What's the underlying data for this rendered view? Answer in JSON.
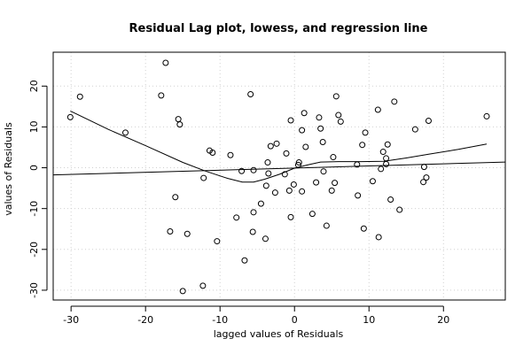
{
  "chart_data": {
    "type": "scatter",
    "title": "Residual Lag plot, lowess, and regression line",
    "xlabel": "lagged values of Residuals",
    "ylabel": "values of Residuals",
    "xlim": [
      -32.4,
      28.3
    ],
    "ylim": [
      -32.4,
      28.3
    ],
    "xticks": [
      -30,
      -20,
      -10,
      0,
      10,
      20
    ],
    "yticks": [
      -30,
      -20,
      -10,
      0,
      10,
      20
    ],
    "grid": true,
    "legend": "none",
    "colors": {
      "points": "#000000",
      "lines": "#000000",
      "grid": "#d0d0d0",
      "background": "#ffffff"
    },
    "points": [
      {
        "x": -30.1,
        "y": 12.4
      },
      {
        "x": -28.8,
        "y": 17.4
      },
      {
        "x": -22.7,
        "y": 8.6
      },
      {
        "x": -17.9,
        "y": 17.7
      },
      {
        "x": -17.3,
        "y": 25.7
      },
      {
        "x": -16.7,
        "y": -15.6
      },
      {
        "x": -16.0,
        "y": -7.2
      },
      {
        "x": -15.6,
        "y": 11.9
      },
      {
        "x": -15.4,
        "y": 10.6
      },
      {
        "x": -15.0,
        "y": -30.2
      },
      {
        "x": -14.4,
        "y": -16.2
      },
      {
        "x": -12.3,
        "y": -28.9
      },
      {
        "x": -12.2,
        "y": -2.5
      },
      {
        "x": -11.4,
        "y": 4.2
      },
      {
        "x": -11.0,
        "y": 3.7
      },
      {
        "x": -10.4,
        "y": -18.0
      },
      {
        "x": -8.6,
        "y": 3.1
      },
      {
        "x": -7.8,
        "y": -12.2
      },
      {
        "x": -7.1,
        "y": -0.8
      },
      {
        "x": -6.7,
        "y": -22.7
      },
      {
        "x": -5.9,
        "y": 18.0
      },
      {
        "x": -5.6,
        "y": -15.7
      },
      {
        "x": -5.5,
        "y": -10.9
      },
      {
        "x": -5.5,
        "y": -0.6
      },
      {
        "x": -4.5,
        "y": -8.8
      },
      {
        "x": -3.9,
        "y": -17.4
      },
      {
        "x": -3.8,
        "y": -4.4
      },
      {
        "x": -3.6,
        "y": 1.3
      },
      {
        "x": -3.5,
        "y": -1.4
      },
      {
        "x": -3.2,
        "y": 5.3
      },
      {
        "x": -2.6,
        "y": -6.1
      },
      {
        "x": -2.4,
        "y": 5.9
      },
      {
        "x": -1.3,
        "y": -1.6
      },
      {
        "x": -1.1,
        "y": 3.5
      },
      {
        "x": -0.7,
        "y": -5.6
      },
      {
        "x": -0.5,
        "y": 11.6
      },
      {
        "x": -0.5,
        "y": -12.1
      },
      {
        "x": -0.1,
        "y": -4.1
      },
      {
        "x": 0.5,
        "y": 0.7
      },
      {
        "x": 0.6,
        "y": 1.3
      },
      {
        "x": 1.0,
        "y": 9.2
      },
      {
        "x": 1.0,
        "y": -5.8
      },
      {
        "x": 1.3,
        "y": 13.4
      },
      {
        "x": 1.5,
        "y": 5.1
      },
      {
        "x": 2.4,
        "y": -11.3
      },
      {
        "x": 2.9,
        "y": -3.6
      },
      {
        "x": 3.3,
        "y": 12.3
      },
      {
        "x": 3.5,
        "y": 9.6
      },
      {
        "x": 3.8,
        "y": 6.3
      },
      {
        "x": 3.9,
        "y": -0.9
      },
      {
        "x": 4.3,
        "y": -14.2
      },
      {
        "x": 5.0,
        "y": -5.6
      },
      {
        "x": 5.2,
        "y": 2.6
      },
      {
        "x": 5.4,
        "y": -3.7
      },
      {
        "x": 5.6,
        "y": 17.5
      },
      {
        "x": 5.9,
        "y": 12.9
      },
      {
        "x": 6.2,
        "y": 11.3
      },
      {
        "x": 8.4,
        "y": 0.8
      },
      {
        "x": 8.5,
        "y": -6.8
      },
      {
        "x": 9.1,
        "y": 5.6
      },
      {
        "x": 9.3,
        "y": -14.9
      },
      {
        "x": 9.5,
        "y": 8.6
      },
      {
        "x": 10.5,
        "y": -3.3
      },
      {
        "x": 11.2,
        "y": 14.2
      },
      {
        "x": 11.3,
        "y": -17.0
      },
      {
        "x": 11.6,
        "y": -0.3
      },
      {
        "x": 11.9,
        "y": 3.9
      },
      {
        "x": 12.3,
        "y": 2.3
      },
      {
        "x": 12.3,
        "y": 0.9
      },
      {
        "x": 12.5,
        "y": 5.7
      },
      {
        "x": 12.9,
        "y": -7.8
      },
      {
        "x": 13.4,
        "y": 16.2
      },
      {
        "x": 14.1,
        "y": -10.3
      },
      {
        "x": 16.2,
        "y": 9.4
      },
      {
        "x": 17.3,
        "y": -3.5
      },
      {
        "x": 17.4,
        "y": 0.2
      },
      {
        "x": 17.7,
        "y": -2.4
      },
      {
        "x": 18.0,
        "y": 11.5
      },
      {
        "x": 25.8,
        "y": 12.6
      }
    ],
    "lowess": [
      {
        "x": -30.1,
        "y": 13.9
      },
      {
        "x": -25.0,
        "y": 9.4
      },
      {
        "x": -20.0,
        "y": 5.4
      },
      {
        "x": -15.0,
        "y": 1.3
      },
      {
        "x": -12.0,
        "y": -0.8
      },
      {
        "x": -9.0,
        "y": -2.6
      },
      {
        "x": -7.0,
        "y": -3.5
      },
      {
        "x": -5.5,
        "y": -3.5
      },
      {
        "x": -4.0,
        "y": -2.8
      },
      {
        "x": -2.0,
        "y": -1.6
      },
      {
        "x": 0.0,
        "y": -0.1
      },
      {
        "x": 2.0,
        "y": 0.8
      },
      {
        "x": 3.5,
        "y": 1.4
      },
      {
        "x": 6.0,
        "y": 1.5
      },
      {
        "x": 9.0,
        "y": 1.5
      },
      {
        "x": 12.0,
        "y": 1.6
      },
      {
        "x": 15.0,
        "y": 2.4
      },
      {
        "x": 18.0,
        "y": 3.3
      },
      {
        "x": 22.0,
        "y": 4.5
      },
      {
        "x": 25.8,
        "y": 5.8
      }
    ],
    "regression": {
      "intercept": -0.08,
      "slope": 0.0517
    }
  }
}
